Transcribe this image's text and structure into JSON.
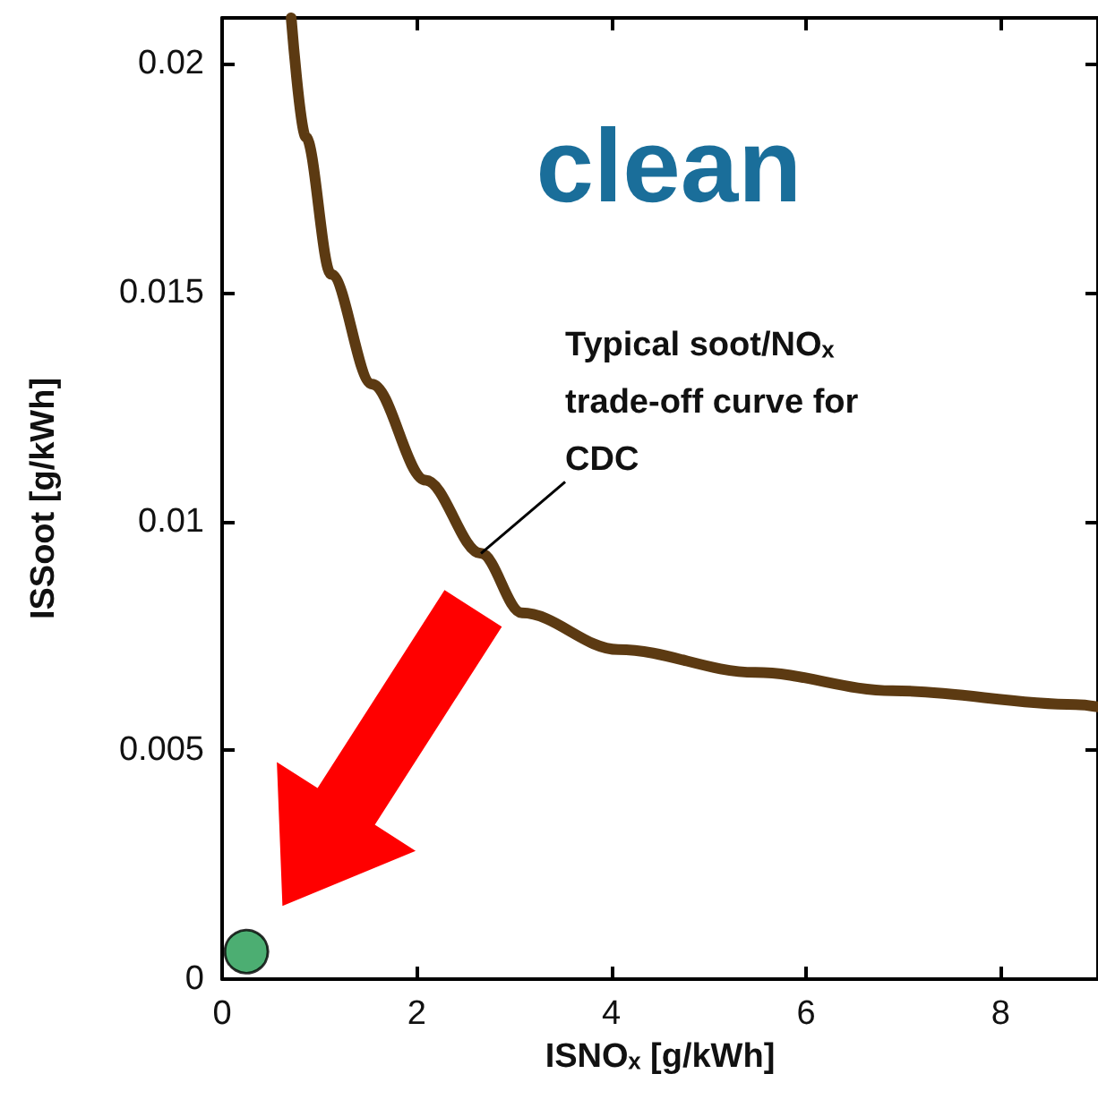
{
  "chart_data": {
    "type": "line",
    "xlabel": "ISNOₓ [g/kWh]",
    "ylabel": "ISSoot [g/kWh]",
    "xlim": [
      0,
      9
    ],
    "ylim": [
      0,
      0.021
    ],
    "xticks": [
      0,
      2,
      4,
      6,
      8
    ],
    "yticks": [
      0,
      0.005,
      0.01,
      0.015,
      0.02
    ],
    "grid": false,
    "marker": "none",
    "line_style": "solid",
    "series": [
      {
        "color": "#5c3a12",
        "x": [
          0.71,
          0.86,
          1.12,
          1.54,
          2.09,
          2.66,
          3.08,
          4.07,
          5.48,
          6.89,
          8.77,
          9
        ],
        "values": [
          0.021,
          0.0184,
          0.0154,
          0.013,
          0.0109,
          0.0093,
          0.008,
          0.0072,
          0.0067,
          0.0063,
          0.006,
          0.00595
        ]
      },
      {
        "type": "scatter",
        "color": "#1f9a4f",
        "marker": "circle",
        "x": [
          0.25
        ],
        "values": [
          0.0006
        ]
      }
    ],
    "annotations": [
      "clean",
      {
        "text": "Typical soot/NOₓ trade-off curve for CDC",
        "x": 2.66,
        "y": 0.0093
      }
    ]
  }
}
